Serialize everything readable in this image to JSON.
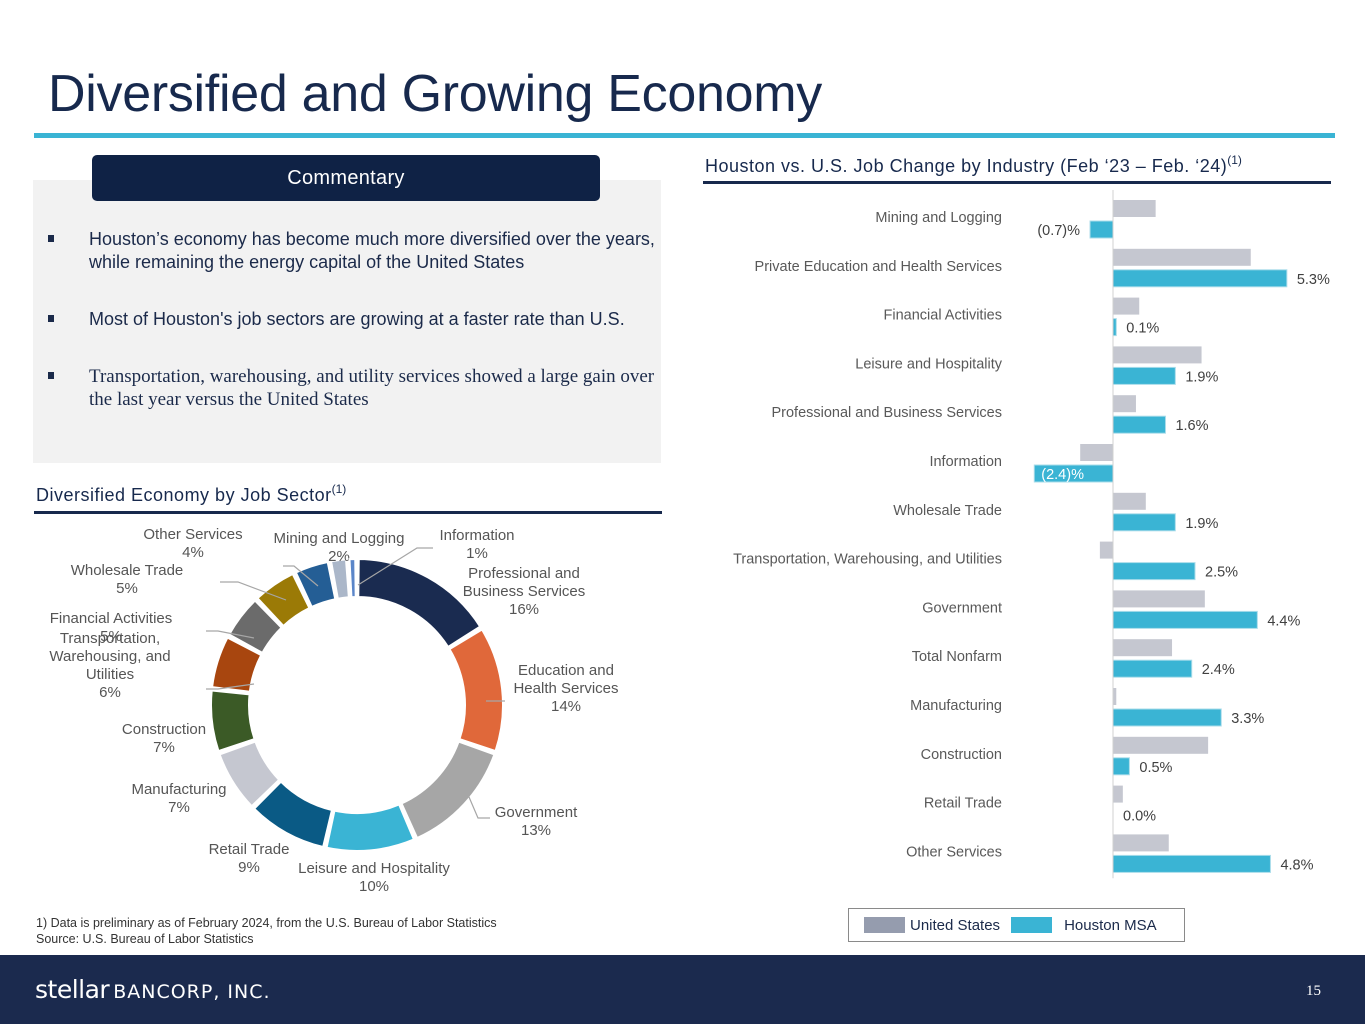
{
  "page": {
    "title": "Diversified and Growing Economy",
    "page_number": "15",
    "accent_color": "#3ab4d4",
    "navy_color": "#17294d"
  },
  "commentary": {
    "header": "Commentary",
    "bullets": [
      "Houston’s economy has become much more diversified over the years, while remaining the energy capital of the United States",
      "Most of Houston's job sectors are growing at a faster rate than U.S.",
      "Transportation, warehousing, and utility services showed a large gain over the last year versus the United States"
    ]
  },
  "donut_section": {
    "title": "Diversified Economy by Job Sector",
    "superscript": "(1)"
  },
  "bar_section": {
    "title": "Houston vs. U.S. Job Change by Industry (Feb ‘23 – Feb. ‘24)",
    "superscript": "(1)"
  },
  "legend": {
    "us_label": "United States",
    "houston_label": "Houston MSA"
  },
  "footnotes": {
    "note1": "1) Data is preliminary as of February 2024, from the U.S. Bureau of Labor Statistics",
    "source": "Source: U.S. Bureau of Labor Statistics"
  },
  "footer": {
    "logo_stellar": "stellar",
    "logo_bancorp": "BANCORP, INC."
  },
  "chart_data": [
    {
      "type": "pie",
      "variant": "donut",
      "title": "Diversified Economy by Job Sector",
      "start": "top, clockwise",
      "slices": [
        {
          "label": "Professional and Business Services",
          "value": 16,
          "display": "16%",
          "color": "#1a2b50"
        },
        {
          "label": "Education and Health Services",
          "value": 14,
          "display": "14%",
          "color": "#e0683a"
        },
        {
          "label": "Government",
          "value": 13,
          "display": "13%",
          "color": "#a6a6a6"
        },
        {
          "label": "Leisure and Hospitality",
          "value": 10,
          "display": "10%",
          "color": "#3ab4d4"
        },
        {
          "label": "Retail Trade",
          "value": 9,
          "display": "9%",
          "color": "#0a5a85"
        },
        {
          "label": "Manufacturing",
          "value": 7,
          "display": "7%",
          "color": "#c5c7d0"
        },
        {
          "label": "Construction",
          "value": 7,
          "display": "7%",
          "color": "#3b5a26"
        },
        {
          "label": "Transportation, Warehousing, and Utilities",
          "value": 6,
          "display": "6%",
          "color": "#a8460f"
        },
        {
          "label": "Financial Activities",
          "value": 5,
          "display": "5%",
          "color": "#6b6b6b"
        },
        {
          "label": "Wholesale Trade",
          "value": 5,
          "display": "5%",
          "color": "#9b7a06"
        },
        {
          "label": "Other Services",
          "value": 4,
          "display": "4%",
          "color": "#245e95"
        },
        {
          "label": "Mining and Logging",
          "value": 2,
          "display": "2%",
          "color": "#abb7c9"
        },
        {
          "label": "Information",
          "value": 1,
          "display": "1%",
          "color": "#5b86c9"
        }
      ]
    },
    {
      "type": "bar",
      "orientation": "horizontal",
      "title": "Houston vs. U.S. Job Change by Industry (Feb ‘23 – Feb. ‘24)",
      "xlabel": "",
      "ylabel": "",
      "xlim": [
        -2.5,
        5.5
      ],
      "grid": false,
      "legend": "bottom-right",
      "categories": [
        "Mining and Logging",
        "Private Education and Health Services",
        "Financial Activities",
        "Leisure and Hospitality",
        "Professional and Business Services",
        "Information",
        "Wholesale Trade",
        "Transportation, Warehousing, and Utilities",
        "Government",
        "Total Nonfarm",
        "Manufacturing",
        "Construction",
        "Retail Trade",
        "Other Services"
      ],
      "series": [
        {
          "name": "United States",
          "color": "#c5c7d0",
          "values": [
            1.3,
            4.2,
            0.8,
            2.7,
            0.7,
            -1.0,
            1.0,
            -0.4,
            2.8,
            1.8,
            0.1,
            2.9,
            0.3,
            1.7
          ],
          "labels": null
        },
        {
          "name": "Houston MSA",
          "color": "#3ab4d4",
          "values": [
            -0.7,
            5.3,
            0.1,
            1.9,
            1.6,
            -2.4,
            1.9,
            2.5,
            4.4,
            2.4,
            3.3,
            0.5,
            0.0,
            4.8
          ],
          "labels": [
            "(0.7)%",
            "5.3%",
            "0.1%",
            "1.9%",
            "1.6%",
            "(2.4)%",
            "1.9%",
            "2.5%",
            "4.4%",
            "2.4%",
            "3.3%",
            "0.5%",
            "0.0%",
            "4.8%"
          ]
        }
      ]
    }
  ]
}
